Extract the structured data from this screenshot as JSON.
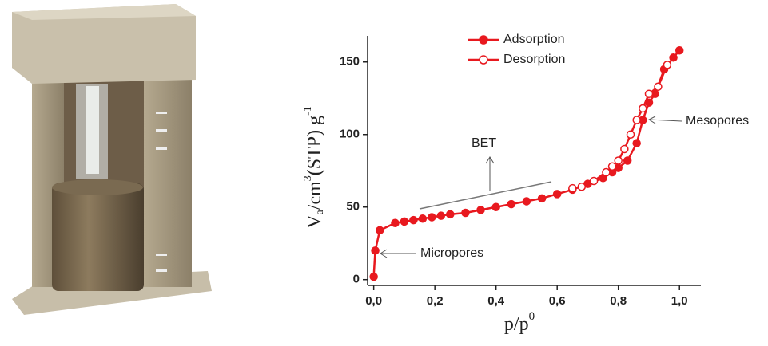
{
  "chart_data": {
    "type": "line",
    "series": [
      {
        "name": "Adsorption",
        "color": "#e8191f",
        "filled": true,
        "x": [
          0.0,
          0.005,
          0.02,
          0.07,
          0.1,
          0.13,
          0.16,
          0.19,
          0.22,
          0.25,
          0.3,
          0.35,
          0.4,
          0.45,
          0.5,
          0.55,
          0.6,
          0.65,
          0.7,
          0.75,
          0.78,
          0.8,
          0.83,
          0.86,
          0.88,
          0.9,
          0.92,
          0.95,
          0.98,
          1.0
        ],
        "values": [
          2,
          20,
          34,
          39,
          40,
          41,
          42,
          43,
          44,
          45,
          46,
          48,
          50,
          52,
          54,
          56,
          59,
          62,
          66,
          70,
          74,
          77,
          82,
          94,
          110,
          122,
          128,
          145,
          153,
          158
        ]
      },
      {
        "name": "Desorption",
        "color": "#e8191f",
        "filled": false,
        "x": [
          0.96,
          0.93,
          0.9,
          0.88,
          0.86,
          0.84,
          0.82,
          0.8,
          0.78,
          0.76,
          0.72,
          0.68,
          0.65
        ],
        "values": [
          148,
          133,
          128,
          118,
          110,
          100,
          90,
          82,
          78,
          74,
          68,
          64,
          63
        ]
      }
    ],
    "xlim": [
      -0.02,
      1.07
    ],
    "ylim": [
      -4,
      168
    ],
    "xticks": [
      {
        "value": 0,
        "label": "0,0"
      },
      {
        "value": 0.2,
        "label": "0,2"
      },
      {
        "value": 0.4,
        "label": "0,4"
      },
      {
        "value": 0.6,
        "label": "0,6"
      },
      {
        "value": 0.8,
        "label": "0,8"
      },
      {
        "value": 1.0,
        "label": "1,0"
      }
    ],
    "yticks": [
      0,
      50,
      100,
      150
    ],
    "ylabel_parts": [
      "V",
      "a",
      "/cm",
      "3",
      "(STP) g",
      "-1"
    ],
    "xlabel_parts": [
      "p/p",
      "0"
    ],
    "annotations": [
      "BET",
      "Micropores",
      "Mesopores"
    ]
  }
}
